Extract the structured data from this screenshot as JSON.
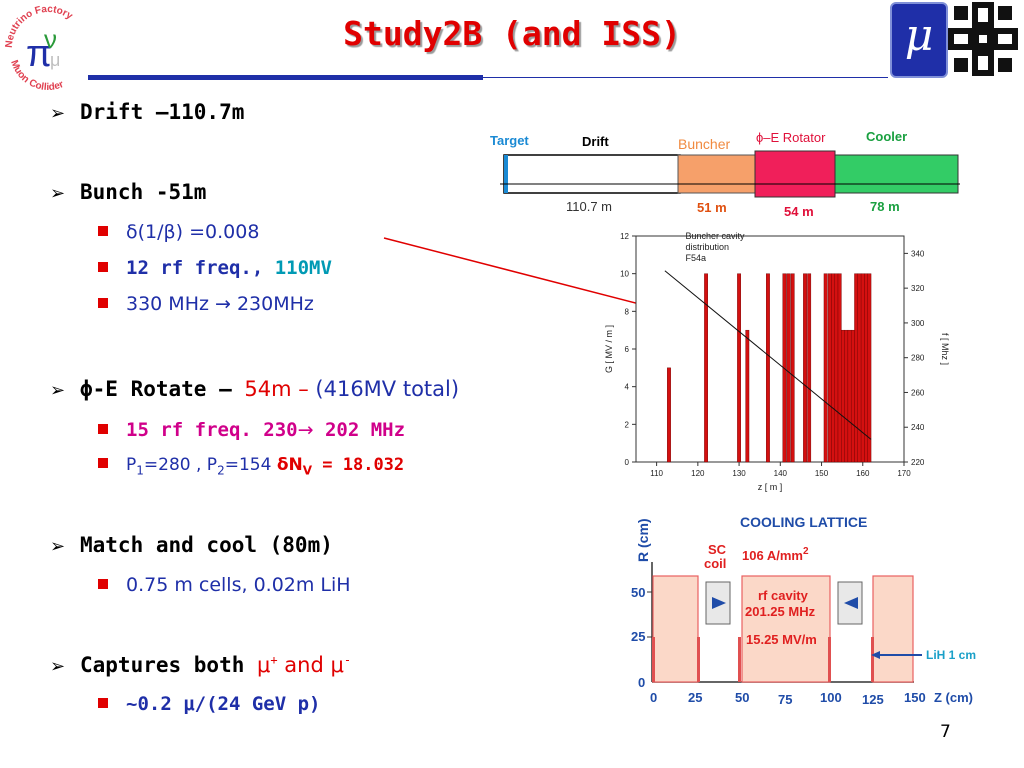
{
  "slide": {
    "title": "Study2B  (and ISS)",
    "page_number": "7"
  },
  "logos": {
    "left_circle_top": "Neutrino Factory",
    "left_circle_bottom": "Muon Collider",
    "left_center": "π",
    "left_letter": "ν",
    "mu_box": "μ"
  },
  "bullets": {
    "drift": "Drift –110.7m",
    "bunch": "Bunch -51m",
    "bunch_sub1_a": "δ(1/β)",
    "bunch_sub1_b": " =0.008",
    "bunch_sub2_a": "12 rf freq.",
    "bunch_sub2_b": ", ",
    "bunch_sub2_c": "110MV",
    "bunch_sub3": "330 MHz → 230MHz",
    "rotate_a": "ϕ-E Rotate – ",
    "rotate_b": "54m – ",
    "rotate_c": "(416MV total)",
    "rotate_sub1_a": "15 rf freq. 230",
    "rotate_sub1_b": "→",
    "rotate_sub1_c": " 202 MHz",
    "rotate_sub2_a": "P",
    "rotate_sub2_a_sub": "1",
    "rotate_sub2_b": "=280 , P",
    "rotate_sub2_b_sub": "2",
    "rotate_sub2_c": "=154 ",
    "rotate_sub2_d": "δN",
    "rotate_sub2_d_sub": "V",
    "rotate_sub2_e": " = 18.032",
    "match": "Match and cool (80m)",
    "match_sub1": "0.75 m cells, 0.02m LiH",
    "captures_a": "Captures both ",
    "captures_b": "μ",
    "captures_b_sup": "+",
    "captures_c": " and ",
    "captures_d": "μ",
    "captures_d_sup": "-",
    "captures_sub1_a": "~0.2 ",
    "captures_sub1_b": "μ/(24 GeV p)"
  },
  "layout_diagram": {
    "segments": [
      {
        "label": "Target",
        "length": "",
        "color": "#1a8ad4"
      },
      {
        "label": "Drift",
        "length": "110.7 m",
        "color": "#ffffff"
      },
      {
        "label": "Buncher",
        "length": "51 m",
        "color": "#f6a06a"
      },
      {
        "label": "ϕ–E Rotator",
        "length": "54 m",
        "color": "#f01f5a"
      },
      {
        "label": "Cooler",
        "length": "78 m",
        "color": "#33cc66"
      }
    ]
  },
  "chart_data": {
    "type": "bar",
    "annotation": [
      "Buncher cavity",
      "distribution",
      "F54a"
    ],
    "xlabel": "z  [ m ]",
    "ylabel": "G  [ MV / m ]",
    "y2label": "f  [ Mhz ]",
    "xlim": [
      105,
      170
    ],
    "ylim": [
      0,
      12
    ],
    "y2lim": [
      220,
      350
    ],
    "x_ticks": [
      "110",
      "120",
      "130",
      "140",
      "150",
      "160",
      "170"
    ],
    "y_ticks": [
      "0",
      "2",
      "4",
      "6",
      "8",
      "10",
      "12"
    ],
    "y2_ticks": [
      "220",
      "240",
      "260",
      "280",
      "300",
      "320",
      "340"
    ],
    "bars": [
      {
        "x": 113,
        "value": 5
      },
      {
        "x": 122,
        "value": 10
      },
      {
        "x": 130,
        "value": 10
      },
      {
        "x": 132,
        "value": 7
      },
      {
        "x": 137,
        "value": 10
      },
      {
        "x": 141,
        "value": 10
      },
      {
        "x": 142,
        "value": 10
      },
      {
        "x": 143,
        "value": 10
      },
      {
        "x": 146,
        "value": 10
      },
      {
        "x": 147,
        "value": 10
      },
      {
        "x": 151,
        "value": 10
      },
      {
        "x": 152,
        "value": 10
      },
      {
        "x": 152.8,
        "value": 10
      },
      {
        "x": 153.6,
        "value": 10
      },
      {
        "x": 154.4,
        "value": 10
      },
      {
        "x": 155.2,
        "value": 7
      },
      {
        "x": 156,
        "value": 7
      },
      {
        "x": 156.8,
        "value": 7
      },
      {
        "x": 157.6,
        "value": 7
      },
      {
        "x": 158.4,
        "value": 10
      },
      {
        "x": 159.2,
        "value": 10
      },
      {
        "x": 160,
        "value": 10
      },
      {
        "x": 160.8,
        "value": 10
      },
      {
        "x": 161.6,
        "value": 10
      }
    ],
    "frequency_line": [
      [
        112,
        330
      ],
      [
        162,
        233
      ]
    ]
  },
  "cooling_lattice": {
    "title": "COOLING LATTICE",
    "sc_label": "SC",
    "coil_label": "coil",
    "current_label": "106 A/mm",
    "current_sup": "2",
    "rf_label": "rf cavity",
    "rf_freq": "201.25 MHz",
    "rf_field": "15.25 MV/m",
    "lih_label": "LiH 1 cm",
    "ylabel": "R (cm)",
    "xlabel": "Z (cm)",
    "y_ticks": [
      "0",
      "25",
      "50"
    ],
    "x_ticks": [
      "0",
      "25",
      "50",
      "75",
      "100",
      "125",
      "150"
    ]
  }
}
